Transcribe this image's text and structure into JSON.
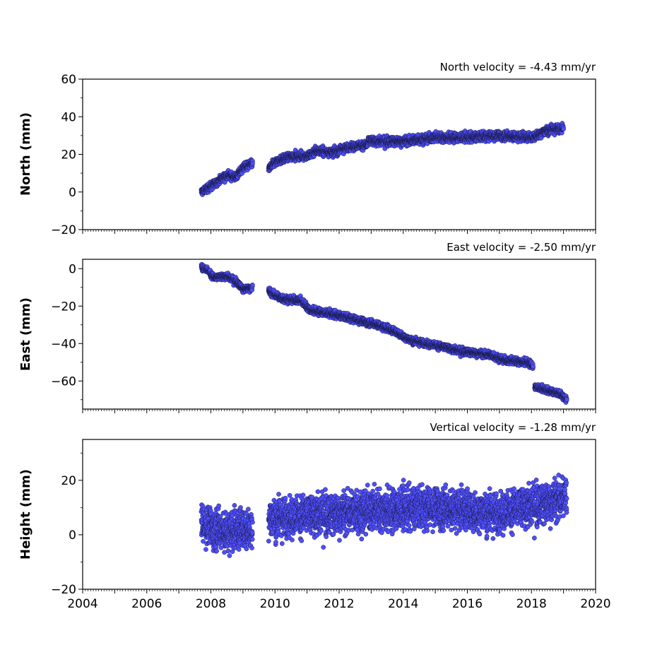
{
  "chart_data": [
    {
      "type": "scatter",
      "title": "North velocity = -4.43 mm/yr",
      "ylabel": "North (mm)",
      "xlim": [
        2004,
        2020
      ],
      "ylim": [
        -20,
        60
      ],
      "yticks": [
        -20,
        0,
        20,
        40,
        60
      ],
      "ytick_labels": [
        "−20",
        "0",
        "20",
        "40",
        "60"
      ],
      "show_xtick_labels": false,
      "series": [
        {
          "color": "#4f4fff",
          "segments": [
            {
              "x": [
                2007.7,
                2008.0,
                2008.5,
                2008.8,
                2009.0,
                2009.3
              ],
              "y": [
                0,
                3,
                9,
                8,
                13,
                15
              ],
              "noise": 1.5
            },
            {
              "x": [
                2009.8,
                2010.0,
                2010.5,
                2011.0,
                2011.3,
                2011.8,
                2012.3,
                2012.9
              ],
              "y": [
                12,
                16,
                19,
                19,
                22,
                21,
                24,
                25
              ],
              "noise": 1.6
            },
            {
              "x": [
                2012.9,
                2013.5,
                2014.0,
                2014.5,
                2015.0,
                2016.0,
                2017.0,
                2018.0,
                2018.5,
                2019.0
              ],
              "y": [
                27,
                27,
                27,
                28,
                29,
                29,
                30,
                29,
                33,
                34
              ],
              "noise": 1.8
            }
          ]
        }
      ]
    },
    {
      "type": "scatter",
      "title": "East velocity = -2.50 mm/yr",
      "ylabel": "East (mm)",
      "xlim": [
        2004,
        2020
      ],
      "ylim": [
        -75,
        5
      ],
      "yticks": [
        -60,
        -40,
        -20,
        0
      ],
      "ytick_labels": [
        "−60",
        "−40",
        "−20",
        "0"
      ],
      "show_xtick_labels": false,
      "series": [
        {
          "color": "#4f4fff",
          "segments": [
            {
              "x": [
                2007.7,
                2007.9,
                2008.1,
                2008.5,
                2008.8,
                2009.0,
                2009.3
              ],
              "y": [
                1,
                -1,
                -5,
                -4,
                -7,
                -11,
                -10
              ],
              "noise": 1.3
            },
            {
              "x": [
                2009.8,
                2010.2,
                2010.8,
                2011.1,
                2012.0,
                2012.7,
                2013.2,
                2013.8,
                2014.2,
                2015.0,
                2015.8,
                2016.7,
                2017.2,
                2017.9,
                2018.05
              ],
              "y": [
                -12,
                -16,
                -17,
                -22,
                -25,
                -28,
                -30,
                -34,
                -38,
                -41,
                -44,
                -46,
                -49,
                -50,
                -52
              ],
              "noise": 1.4
            },
            {
              "x": [
                2018.1,
                2018.5,
                2018.9,
                2019.1
              ],
              "y": [
                -63,
                -65,
                -67,
                -70
              ],
              "noise": 1.2
            }
          ]
        }
      ]
    },
    {
      "type": "scatter",
      "title": "Vertical velocity = -1.28 mm/yr",
      "ylabel": "Height (mm)",
      "xlim": [
        2004,
        2020
      ],
      "ylim": [
        -20,
        35
      ],
      "yticks": [
        -20,
        0,
        20
      ],
      "ytick_labels": [
        "−20",
        "0",
        "20"
      ],
      "show_xtick_labels": true,
      "xticks": [
        2004,
        2006,
        2008,
        2010,
        2012,
        2014,
        2016,
        2018,
        2020
      ],
      "series": [
        {
          "color": "#4f4fff",
          "segments": [
            {
              "x": [
                2007.7,
                2008.5,
                2009.3
              ],
              "y": [
                4,
                1,
                3
              ],
              "noise": 5.5
            },
            {
              "x": [
                2009.8,
                2011.0,
                2013.0,
                2015.0,
                2017.0,
                2018.5,
                2019.1
              ],
              "y": [
                6,
                7,
                9,
                10,
                8,
                12,
                14
              ],
              "noise": 5.5
            }
          ]
        }
      ]
    }
  ]
}
